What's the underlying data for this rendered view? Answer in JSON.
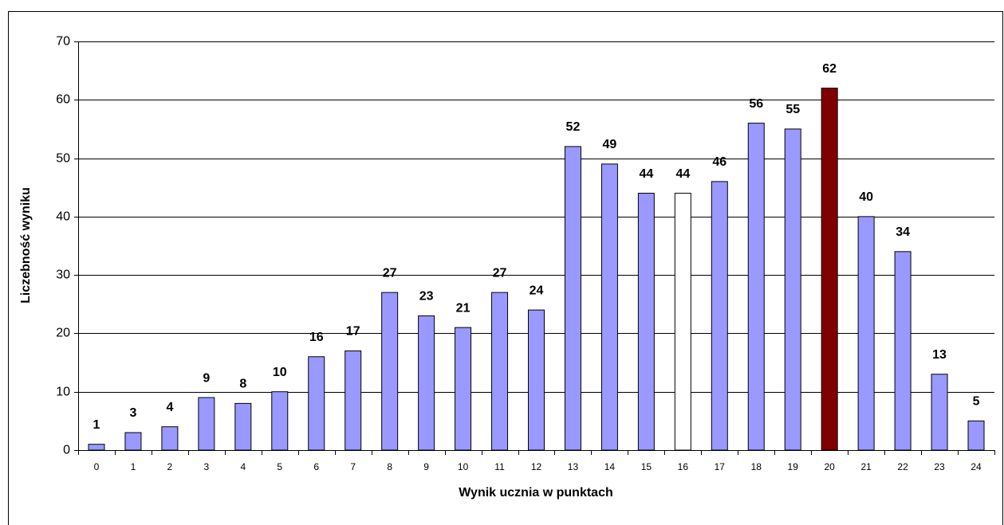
{
  "chart_data": {
    "type": "bar",
    "x_label": "Wynik ucznia w punktach",
    "y_label": "Liczebność wyniku",
    "categories": [
      "0",
      "1",
      "2",
      "3",
      "4",
      "5",
      "6",
      "7",
      "8",
      "9",
      "10",
      "11",
      "12",
      "13",
      "14",
      "15",
      "16",
      "17",
      "18",
      "19",
      "20",
      "21",
      "22",
      "23",
      "24"
    ],
    "values": [
      1,
      3,
      4,
      9,
      8,
      10,
      16,
      17,
      27,
      23,
      21,
      27,
      24,
      52,
      49,
      44,
      44,
      46,
      56,
      55,
      62,
      40,
      34,
      13,
      5
    ],
    "colors": [
      "#9999ff",
      "#9999ff",
      "#9999ff",
      "#9999ff",
      "#9999ff",
      "#9999ff",
      "#9999ff",
      "#9999ff",
      "#9999ff",
      "#9999ff",
      "#9999ff",
      "#9999ff",
      "#9999ff",
      "#9999ff",
      "#9999ff",
      "#9999ff",
      "#ffffff",
      "#9999ff",
      "#9999ff",
      "#9999ff",
      "#800000",
      "#9999ff",
      "#9999ff",
      "#9999ff",
      "#9999ff"
    ],
    "ylim": [
      0,
      70
    ],
    "yticks": [
      0,
      10,
      20,
      30,
      40,
      50,
      60,
      70
    ],
    "grid": true
  }
}
